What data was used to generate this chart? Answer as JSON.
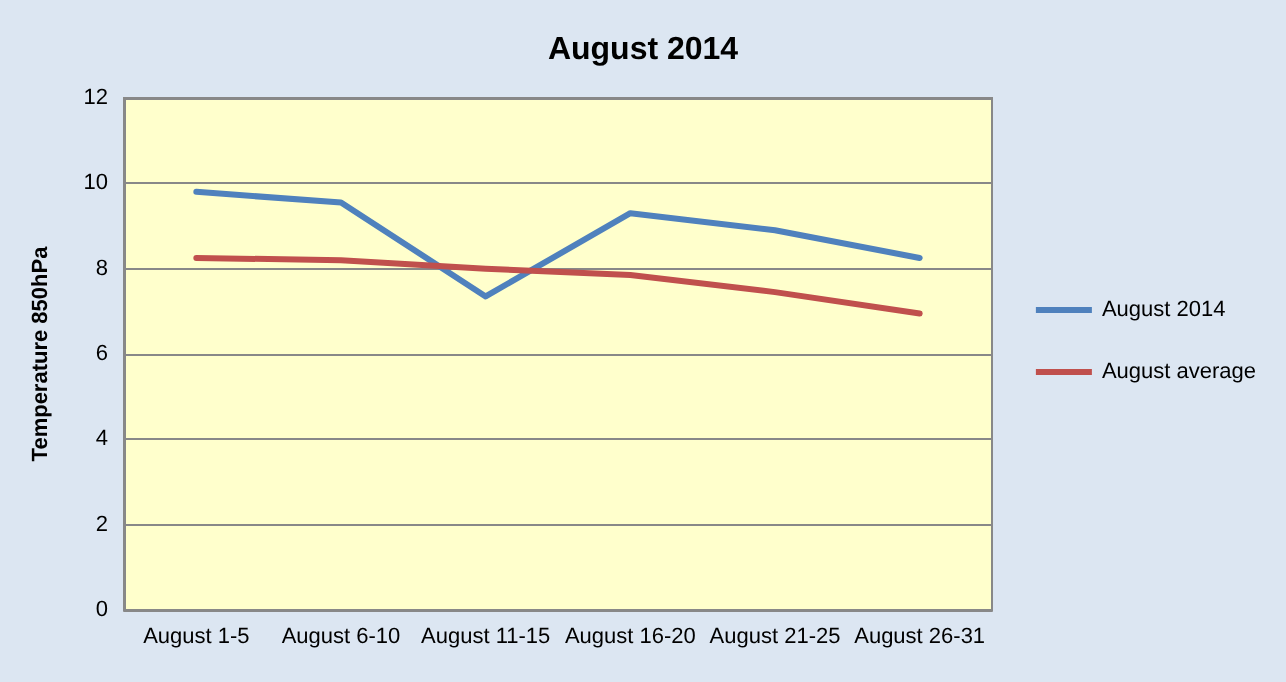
{
  "chart_data": {
    "type": "line",
    "title": "August 2014",
    "ylabel": "Temperature 850hPa",
    "categories": [
      "August 1-5",
      "August 6-10",
      "August 11-15",
      "August 16-20",
      "August 21-25",
      "August 26-31"
    ],
    "series": [
      {
        "name": "August 2014",
        "color": "#4f81bd",
        "values": [
          9.8,
          9.55,
          7.35,
          9.3,
          8.9,
          8.25
        ]
      },
      {
        "name": "August average",
        "color": "#c0504d",
        "values": [
          8.25,
          8.2,
          8.0,
          7.85,
          7.45,
          6.95
        ]
      }
    ],
    "ylim": [
      0,
      12
    ],
    "yticks": [
      0,
      2,
      4,
      6,
      8,
      10,
      12
    ],
    "grid": "y",
    "legend": "right",
    "marker": "none",
    "line_style": "solid"
  }
}
